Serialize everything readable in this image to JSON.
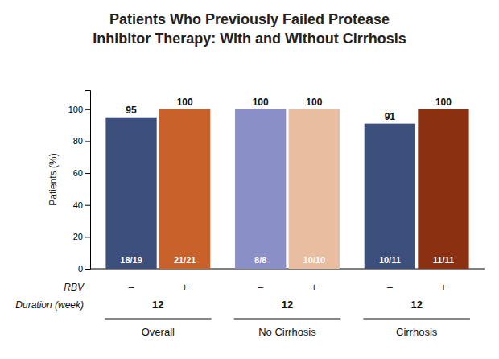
{
  "chart_data": {
    "type": "bar",
    "title": [
      "Patients Who Previously Failed Protease",
      "Inhibitor Therapy: With and Without Cirrhosis"
    ],
    "ylabel": "Patients (%)",
    "categories": [
      "Overall",
      "No Cirrhosis",
      "Cirrhosis"
    ],
    "series_label": "RBV",
    "series": [
      {
        "name": "–",
        "colors": [
          "#3d4f7c",
          "#8b8fc7",
          "#3d4f7c"
        ],
        "values": [
          95,
          100,
          91
        ],
        "counts": [
          "18/19",
          "8/8",
          "10/11"
        ]
      },
      {
        "name": "+",
        "colors": [
          "#c8622a",
          "#e8bda0",
          "#8b3010"
        ],
        "values": [
          100,
          100,
          100
        ],
        "counts": [
          "21/21",
          "10/10",
          "11/11"
        ]
      }
    ],
    "duration_label": "Duration (week)",
    "duration": 12,
    "ylim": [
      0,
      112
    ],
    "yticks": [
      0,
      20,
      40,
      60,
      80,
      100
    ],
    "grid": false,
    "data_labels": true
  }
}
